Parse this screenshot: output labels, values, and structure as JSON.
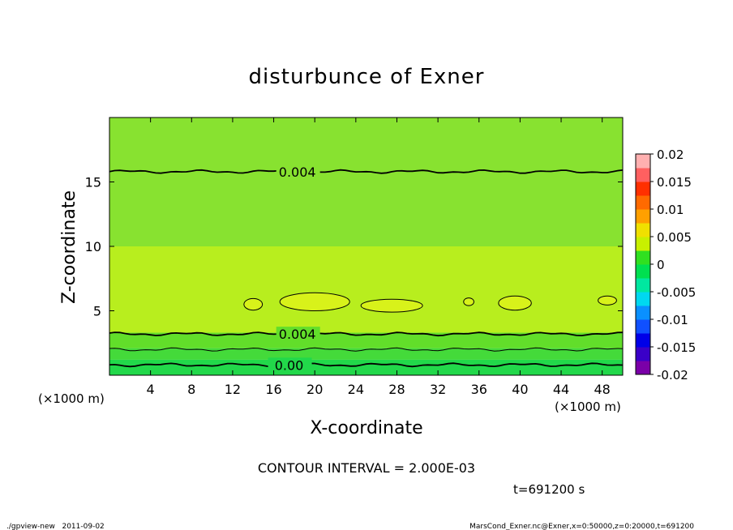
{
  "chart_data": {
    "type": "heatmap",
    "title": "disturbunce of Exner",
    "xlabel": "X-coordinate",
    "ylabel": "Z-coordinate",
    "x_unit_left": "(×1000 m)",
    "x_unit_right": "(×1000 m)",
    "xlim": [
      0,
      50
    ],
    "ylim": [
      0,
      20
    ],
    "x_ticks": [
      4,
      8,
      12,
      16,
      20,
      24,
      28,
      32,
      36,
      40,
      44,
      48
    ],
    "y_ticks": [
      5,
      10,
      15
    ],
    "contour_interval_text": "CONTOUR INTERVAL = 2.000E-03",
    "time_text": "t=691200 s",
    "footer_left": "./gpview-new   2011-09-02",
    "footer_right": "MarsCond_Exner.nc@Exner,x=0:50000,z=0:20000,t=691200",
    "colorbar": {
      "ticks": [
        "0.02",
        "0.015",
        "0.01",
        "0.005",
        "0",
        "-0.005",
        "-0.01",
        "-0.015",
        "-0.02"
      ],
      "range": [
        -0.02,
        0.02
      ],
      "colors": [
        "#7a00a8",
        "#3a00c8",
        "#0000e8",
        "#1050ff",
        "#0a90ff",
        "#00d8f0",
        "#00e8a0",
        "#00e050",
        "#30e020",
        "#c8f000",
        "#f0e000",
        "#ffa000",
        "#ff6a00",
        "#ff3000",
        "#ff6060",
        "#ffb0b0"
      ]
    },
    "bands": [
      {
        "z_from": 10,
        "z_to": 20,
        "value": 0.004,
        "color": "#88e230"
      },
      {
        "z_from": 3.3,
        "z_to": 10,
        "value": 0.005,
        "color": "#b8ee1e"
      },
      {
        "z_from": 2.1,
        "z_to": 3.3,
        "value": 0.003,
        "color": "#62de2a"
      },
      {
        "z_from": 1.2,
        "z_to": 2.1,
        "value": 0.002,
        "color": "#44da3a"
      },
      {
        "z_from": 0,
        "z_to": 1.2,
        "value": 0.001,
        "color": "#22d84a"
      }
    ],
    "contours": [
      {
        "value": 0.004,
        "label": "0.004",
        "z": 15.8,
        "label_x": 18.3
      },
      {
        "value": 0.004,
        "label": "0.004",
        "z": 3.2,
        "label_x": 18.3
      },
      {
        "value": 0.002,
        "label": "",
        "z": 2.0,
        "label_x": null
      },
      {
        "value": 0.0,
        "label": "0.00",
        "z": 0.8,
        "label_x": 17.5
      }
    ],
    "grid": false,
    "legend_position": "right"
  }
}
